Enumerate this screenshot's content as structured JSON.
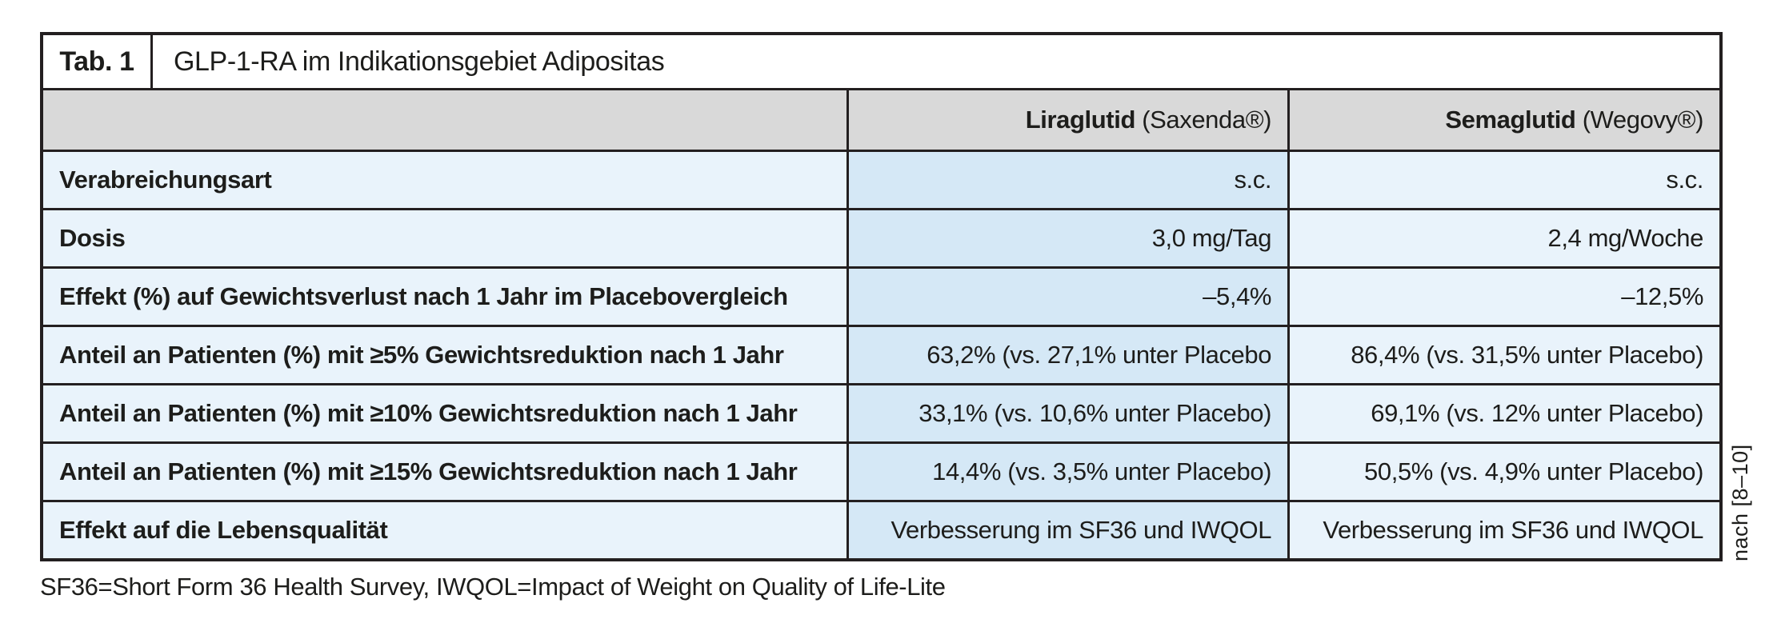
{
  "table": {
    "tag": "Tab. 1",
    "title": "GLP-1-RA im Indikationsgebiet Adipositas",
    "columns": {
      "label_header": "",
      "liraglutid": {
        "name": "Liraglutid",
        "brand": "(Saxenda®)"
      },
      "semaglutid": {
        "name": "Semaglutid",
        "brand": "(Wegovy®)"
      }
    },
    "rows": [
      {
        "label": "Verabreichungsart",
        "liraglutid": "s.c.",
        "semaglutid": "s.c."
      },
      {
        "label": "Dosis",
        "liraglutid": "3,0 mg/Tag",
        "semaglutid": "2,4 mg/Woche"
      },
      {
        "label": "Effekt (%) auf Gewichtsverlust nach 1 Jahr im Placebovergleich",
        "liraglutid": "–5,4%",
        "semaglutid": "–12,5%"
      },
      {
        "label": "Anteil an Patienten (%) mit ≥5% Gewichtsreduktion nach 1 Jahr",
        "liraglutid": "63,2% (vs. 27,1% unter Placebo",
        "semaglutid": "86,4% (vs. 31,5% unter Placebo)"
      },
      {
        "label": "Anteil an Patienten (%) mit ≥10% Gewichtsreduktion nach 1 Jahr",
        "liraglutid": "33,1% (vs. 10,6% unter Placebo)",
        "semaglutid": "69,1% (vs. 12% unter Placebo)"
      },
      {
        "label": "Anteil an Patienten (%) mit ≥15% Gewichtsreduktion nach 1 Jahr",
        "liraglutid": "14,4% (vs. 3,5% unter Placebo)",
        "semaglutid": "50,5% (vs. 4,9% unter Placebo)"
      },
      {
        "label": "Effekt auf die Lebensqualität",
        "liraglutid": "Verbesserung im SF36 und IWQOL",
        "semaglutid": "Verbesserung im SF36 und IWQOL"
      }
    ]
  },
  "footnote": "SF36=Short Form 36 Health Survey, IWQOL=Impact of Weight on Quality of Life-Lite",
  "citation": "nach [8–10]",
  "colors": {
    "header_bg": "#d9d9d9",
    "row_bg_light": "#e9f3fb",
    "row_bg_medium": "#d5e8f6",
    "border": "#231f20"
  }
}
